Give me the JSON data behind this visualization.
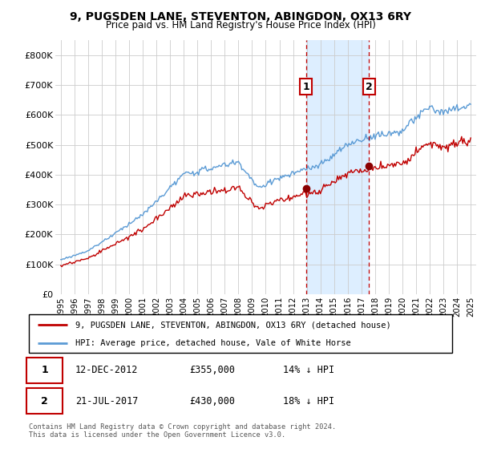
{
  "title": "9, PUGSDEN LANE, STEVENTON, ABINGDON, OX13 6RY",
  "subtitle": "Price paid vs. HM Land Registry's House Price Index (HPI)",
  "legend_line1": "9, PUGSDEN LANE, STEVENTON, ABINGDON, OX13 6RY (detached house)",
  "legend_line2": "HPI: Average price, detached house, Vale of White Horse",
  "annotation1_text_col1": "12-DEC-2012",
  "annotation1_text_col2": "£355,000",
  "annotation1_text_col3": "14% ↓ HPI",
  "annotation2_text_col1": "21-JUL-2017",
  "annotation2_text_col2": "£430,000",
  "annotation2_text_col3": "18% ↓ HPI",
  "footer": "Contains HM Land Registry data © Crown copyright and database right 2024.\nThis data is licensed under the Open Government Licence v3.0.",
  "hpi_color": "#5b9bd5",
  "price_color": "#c00000",
  "annotation_box_color": "#c00000",
  "highlight_color": "#ddeeff",
  "ylim": [
    0,
    850000
  ],
  "yticks": [
    0,
    100000,
    200000,
    300000,
    400000,
    500000,
    600000,
    700000,
    800000
  ],
  "ytick_labels": [
    "£0",
    "£100K",
    "£200K",
    "£300K",
    "£400K",
    "£500K",
    "£600K",
    "£700K",
    "£800K"
  ],
  "sale1_yr_float": 2012.958,
  "sale1_price": 355000,
  "sale2_yr_float": 2017.542,
  "sale2_price": 430000,
  "xstart": 1995,
  "xend": 2025
}
